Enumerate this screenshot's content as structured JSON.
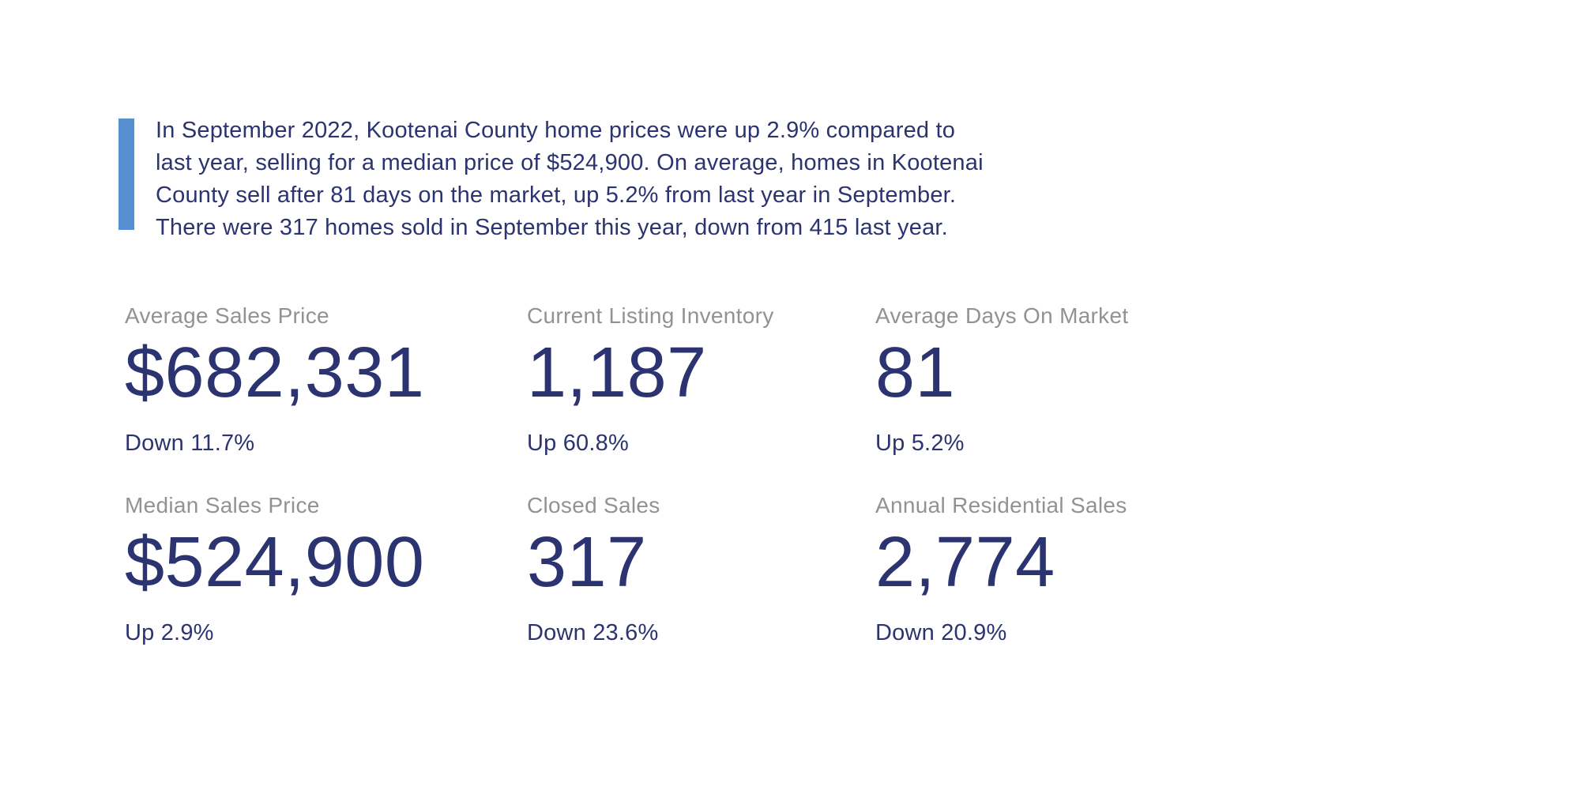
{
  "colors": {
    "background": "#ffffff",
    "text_navy": "#2b3470",
    "label_gray": "#909296",
    "accent_blue": "#5590d0"
  },
  "summary": {
    "lines": [
      "In September 2022, Kootenai County home prices were up 2.9% compared to",
      "last year, selling for a median price of $524,900. On average, homes in Kootenai",
      "County sell after 81 days on the market, up 5.2% from last year in September.",
      "There were 317 homes sold in September this year, down from 415 last year."
    ]
  },
  "stats": [
    {
      "label": "Average Sales Price",
      "value": "$682,331",
      "change": "Down 11.7%"
    },
    {
      "label": "Current Listing Inventory",
      "value": "1,187",
      "change": "Up 60.8%"
    },
    {
      "label": "Average Days On Market",
      "value": "81",
      "change": "Up 5.2%"
    },
    {
      "label": "Median Sales Price",
      "value": "$524,900",
      "change": "Up 2.9%"
    },
    {
      "label": "Closed Sales",
      "value": "317",
      "change": "Down 23.6%"
    },
    {
      "label": "Annual Residential Sales",
      "value": "2,774",
      "change": "Down 20.9%"
    }
  ]
}
